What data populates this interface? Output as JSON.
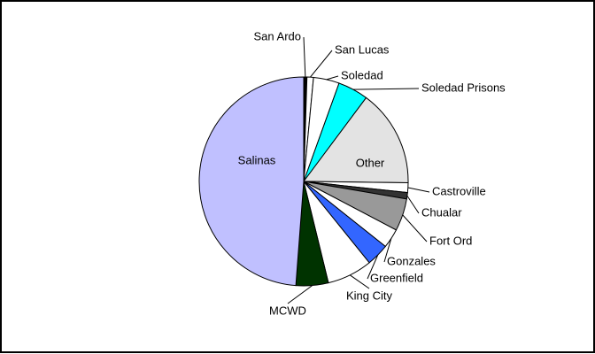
{
  "chart_data": {
    "type": "pie",
    "categories": [
      "San Ardo",
      "San Lucas",
      "Soledad",
      "Soledad Prisons",
      "Other",
      "Castroville",
      "Chualar",
      "Fort Ord",
      "Gonzales",
      "Greenfield",
      "King City",
      "MCWD",
      "Salinas"
    ],
    "values": [
      0.5,
      1,
      4,
      4.7,
      15,
      1.5,
      1,
      5,
      3,
      3.5,
      7,
      5,
      48.8
    ],
    "colors": [
      "#000000",
      "#ffffff",
      "#ffffff",
      "#00ffff",
      "#e3e3e3",
      "#ffffff",
      "#333333",
      "#999999",
      "#ffffff",
      "#3366ff",
      "#ffffff",
      "#003300",
      "#c0c0ff"
    ]
  }
}
